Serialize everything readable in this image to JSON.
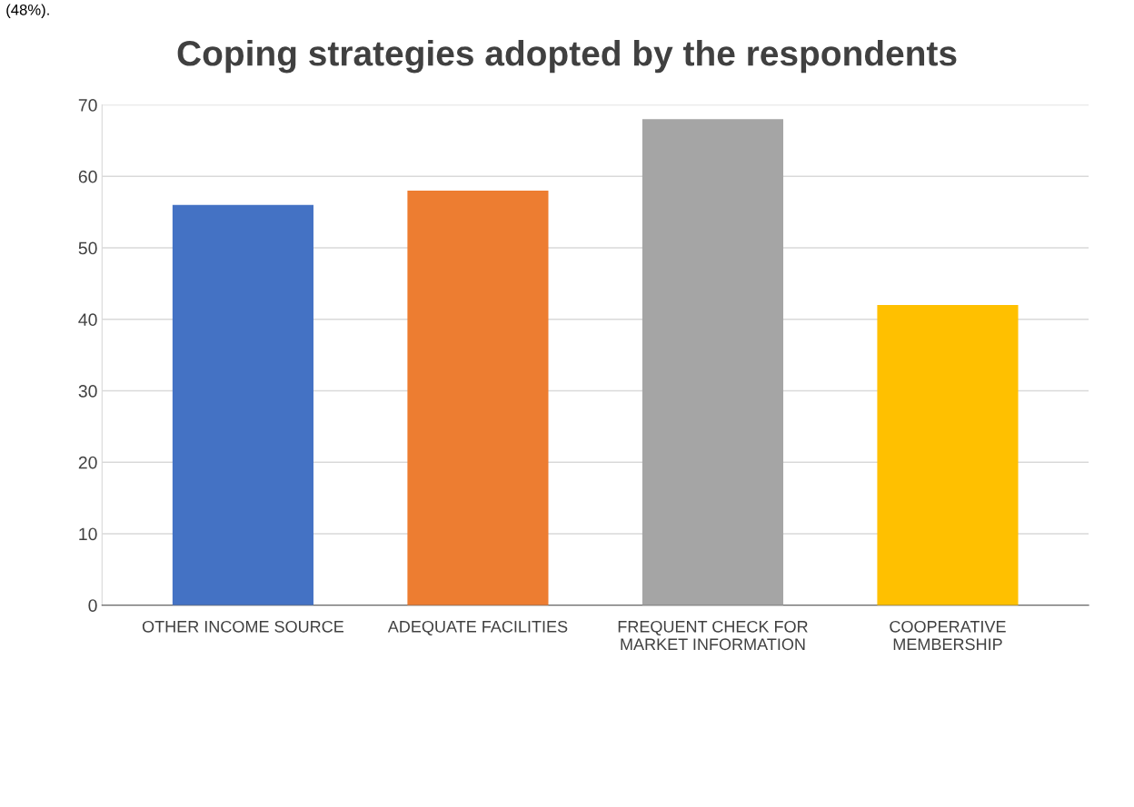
{
  "chart_data": {
    "type": "bar",
    "title": "Coping strategies adopted by the respondents",
    "categories": [
      "OTHER INCOME SOURCE",
      "ADEQUATE FACILITIES",
      "FREQUENT CHECK FOR\nMARKET INFORMATION",
      "COOPERATIVE\nMEMBERSHIP"
    ],
    "values": [
      56,
      58,
      68,
      42
    ],
    "colors": [
      "#4472c4",
      "#ed7d31",
      "#a5a5a5",
      "#ffc000"
    ],
    "ylim": [
      0,
      70
    ],
    "yticks": [
      0,
      10,
      20,
      30,
      40,
      50,
      60,
      70
    ],
    "grid": "y",
    "annotations": [
      "(48%)."
    ]
  }
}
